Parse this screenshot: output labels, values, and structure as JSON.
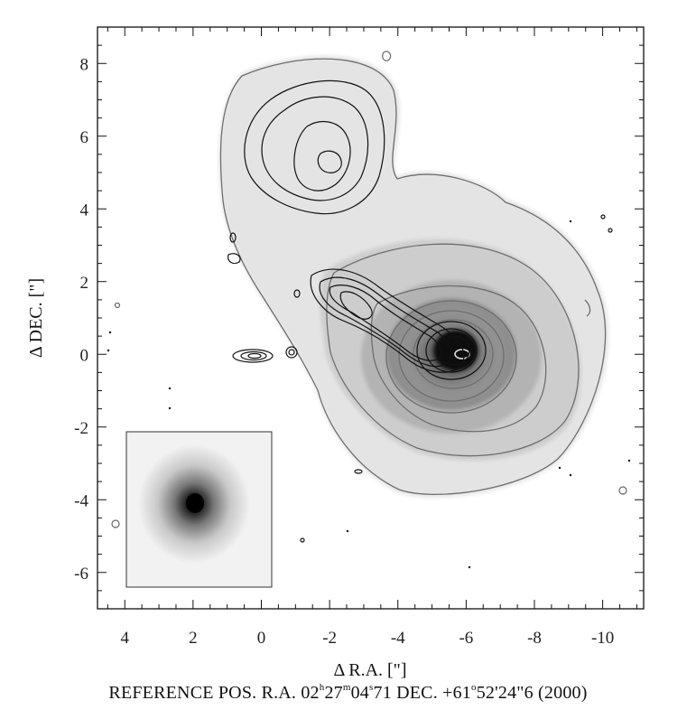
{
  "figure": {
    "xlabel": "Δ R.A. [\"]",
    "ylabel": "Δ DEC. [\"]",
    "x_ticks": [
      "4",
      "2",
      "0",
      "-2",
      "-4",
      "-6",
      "-8",
      "-10"
    ],
    "y_ticks": [
      "8",
      "6",
      "4",
      "2",
      "0",
      "-2",
      "-4",
      "-6"
    ],
    "x_range": [
      4.8,
      -11.2
    ],
    "y_range": [
      -7.0,
      9.0
    ]
  },
  "caption": {
    "prefix": "REFERENCE POS.  R.A. 02",
    "h": "h",
    "mid1": "27",
    "m": "m",
    "mid2": "04",
    "s": "s",
    "ra_frac": "71  DEC.  +61",
    "deg": "o",
    "dec_rest": "52'24\"6  (2000)"
  },
  "colors": {
    "frame": "#111111",
    "grey_contour": "#6e6e6e",
    "black_contour": "#111111"
  }
}
